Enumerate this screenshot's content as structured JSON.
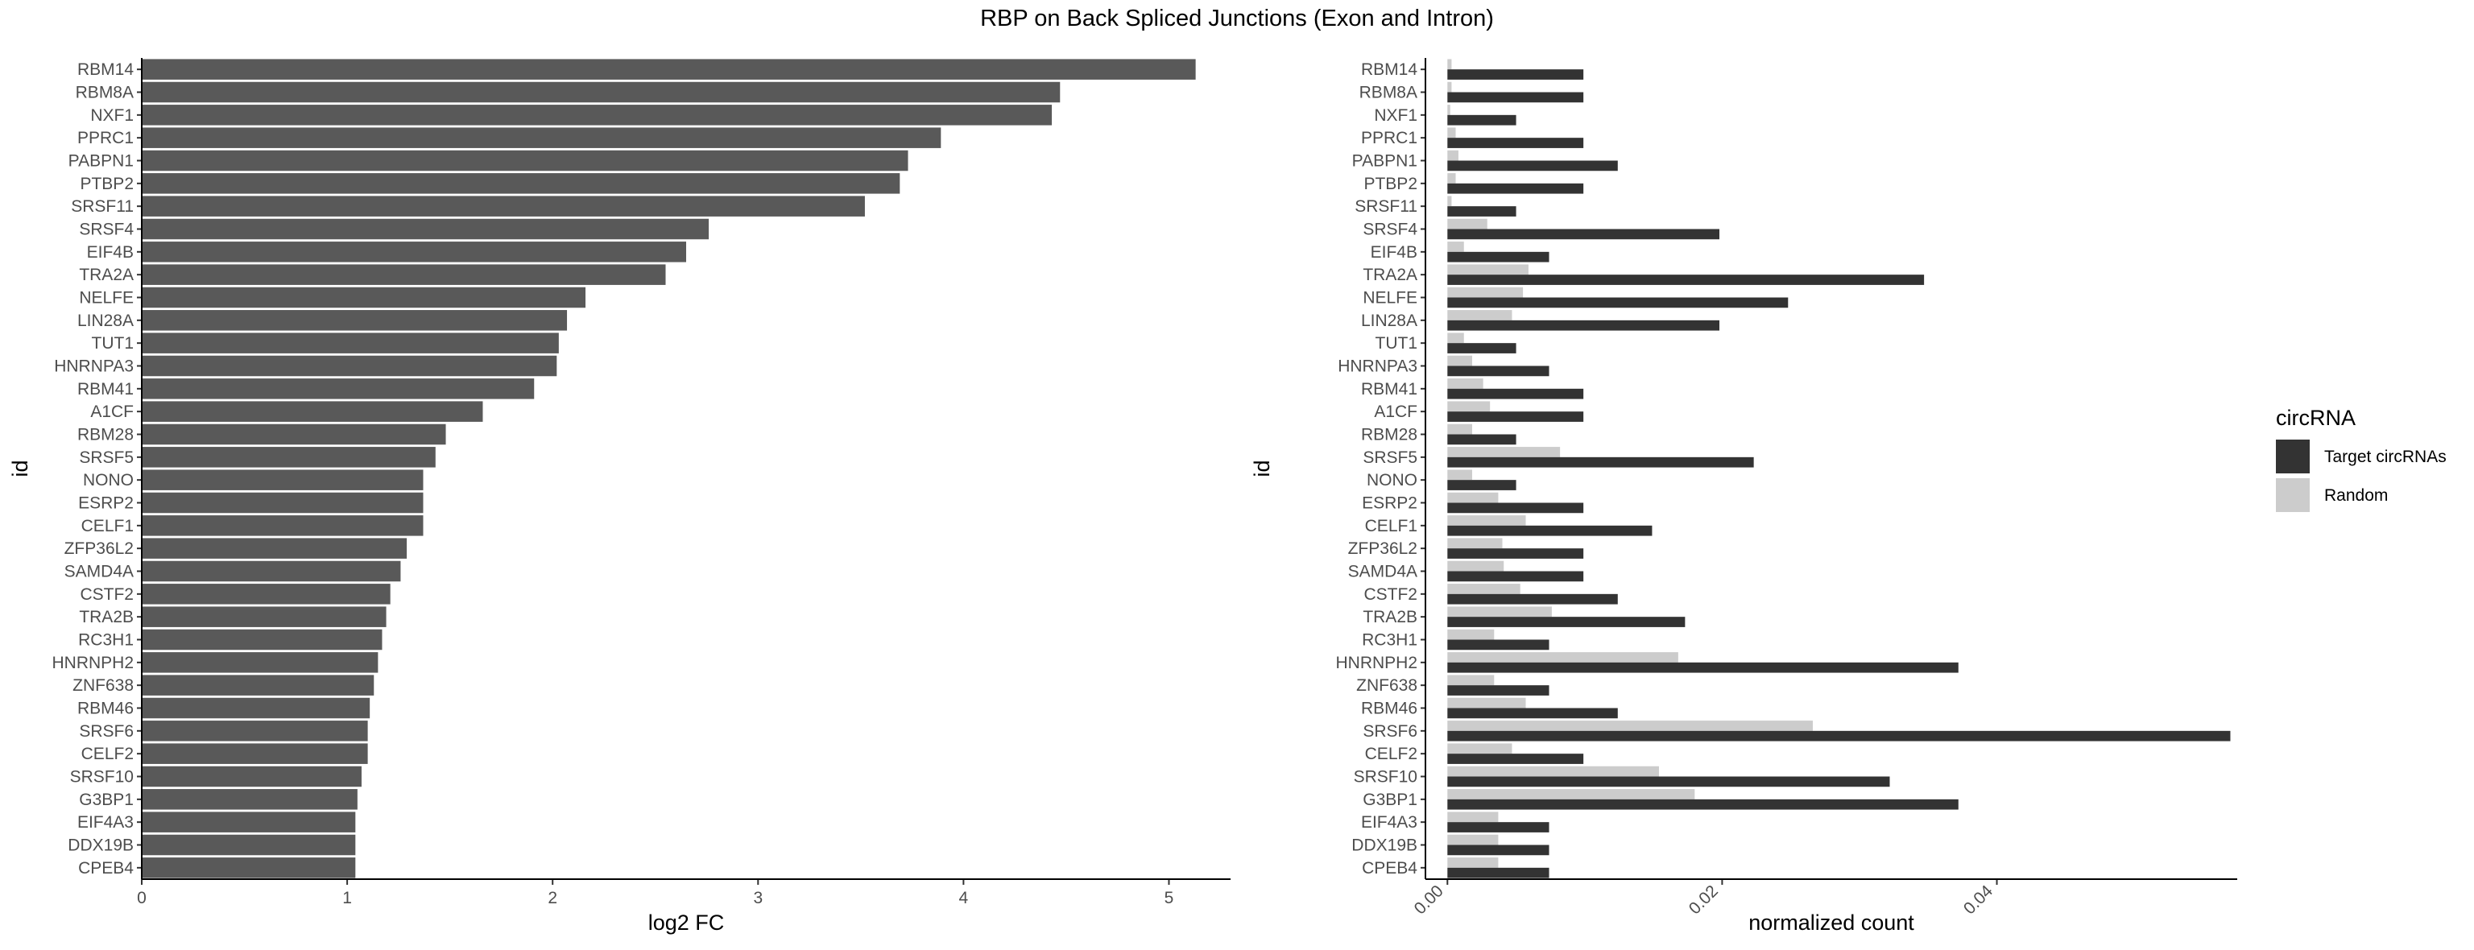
{
  "title": "RBP on Back Spliced Junctions (Exon and Intron)",
  "chart_data": [
    {
      "type": "bar",
      "orientation": "horizontal",
      "xlabel": "log2 FC",
      "ylabel": "id",
      "xlim": [
        0,
        5.3
      ],
      "xticks": [
        0,
        1,
        2,
        3,
        4,
        5
      ],
      "bar_color": "#595959",
      "categories": [
        "RBM14",
        "RBM8A",
        "NXF1",
        "PPRC1",
        "PABPN1",
        "PTBP2",
        "SRSF11",
        "SRSF4",
        "EIF4B",
        "TRA2A",
        "NELFE",
        "LIN28A",
        "TUT1",
        "HNRNPA3",
        "RBM41",
        "A1CF",
        "RBM28",
        "SRSF5",
        "NONO",
        "ESRP2",
        "CELF1",
        "ZFP36L2",
        "SAMD4A",
        "CSTF2",
        "TRA2B",
        "RC3H1",
        "HNRNPH2",
        "ZNF638",
        "RBM46",
        "SRSF6",
        "CELF2",
        "SRSF10",
        "G3BP1",
        "EIF4A3",
        "DDX19B",
        "CPEB4"
      ],
      "values": [
        5.13,
        4.47,
        4.43,
        3.89,
        3.73,
        3.69,
        3.52,
        2.76,
        2.65,
        2.55,
        2.16,
        2.07,
        2.03,
        2.02,
        1.91,
        1.66,
        1.48,
        1.43,
        1.37,
        1.37,
        1.37,
        1.29,
        1.26,
        1.21,
        1.19,
        1.17,
        1.15,
        1.13,
        1.11,
        1.1,
        1.1,
        1.07,
        1.05,
        1.04,
        1.04,
        1.04
      ]
    },
    {
      "type": "bar",
      "orientation": "horizontal",
      "grouped": true,
      "xlabel": "normalized count",
      "ylabel": "id",
      "xlim": [
        -0.0016,
        0.0575
      ],
      "xticks": [
        0.0,
        0.02,
        0.04
      ],
      "xtick_labels": [
        "0.00",
        "0.02",
        "0.04"
      ],
      "categories": [
        "RBM14",
        "RBM8A",
        "NXF1",
        "PPRC1",
        "PABPN1",
        "PTBP2",
        "SRSF11",
        "SRSF4",
        "EIF4B",
        "TRA2A",
        "NELFE",
        "LIN28A",
        "TUT1",
        "HNRNPA3",
        "RBM41",
        "A1CF",
        "RBM28",
        "SRSF5",
        "NONO",
        "ESRP2",
        "CELF1",
        "ZFP36L2",
        "SAMD4A",
        "CSTF2",
        "TRA2B",
        "RC3H1",
        "HNRNPH2",
        "ZNF638",
        "RBM46",
        "SRSF6",
        "CELF2",
        "SRSF10",
        "G3BP1",
        "EIF4A3",
        "DDX19B",
        "CPEB4"
      ],
      "legend_title": "circRNA",
      "legend_position": "right",
      "series": [
        {
          "name": "Target circRNAs",
          "color": "#333333",
          "values": [
            0.0099,
            0.0099,
            0.005,
            0.0099,
            0.0124,
            0.0099,
            0.005,
            0.0198,
            0.0074,
            0.0347,
            0.0248,
            0.0198,
            0.005,
            0.0074,
            0.0099,
            0.0099,
            0.005,
            0.0223,
            0.005,
            0.0099,
            0.0149,
            0.0099,
            0.0099,
            0.0124,
            0.0173,
            0.0074,
            0.0372,
            0.0074,
            0.0124,
            0.057,
            0.0099,
            0.0322,
            0.0372,
            0.0074,
            0.0074,
            0.0074
          ]
        },
        {
          "name": "Random",
          "color": "#cccccc",
          "values": [
            0.0003,
            0.0003,
            0.0002,
            0.0006,
            0.0008,
            0.0006,
            0.0003,
            0.0029,
            0.0012,
            0.0059,
            0.0055,
            0.0047,
            0.0012,
            0.0018,
            0.0026,
            0.0031,
            0.0018,
            0.0082,
            0.0018,
            0.0037,
            0.0057,
            0.004,
            0.0041,
            0.0053,
            0.0076,
            0.0034,
            0.0168,
            0.0034,
            0.0057,
            0.0266,
            0.0047,
            0.0154,
            0.018,
            0.0037,
            0.0037,
            0.0037
          ]
        }
      ]
    }
  ]
}
